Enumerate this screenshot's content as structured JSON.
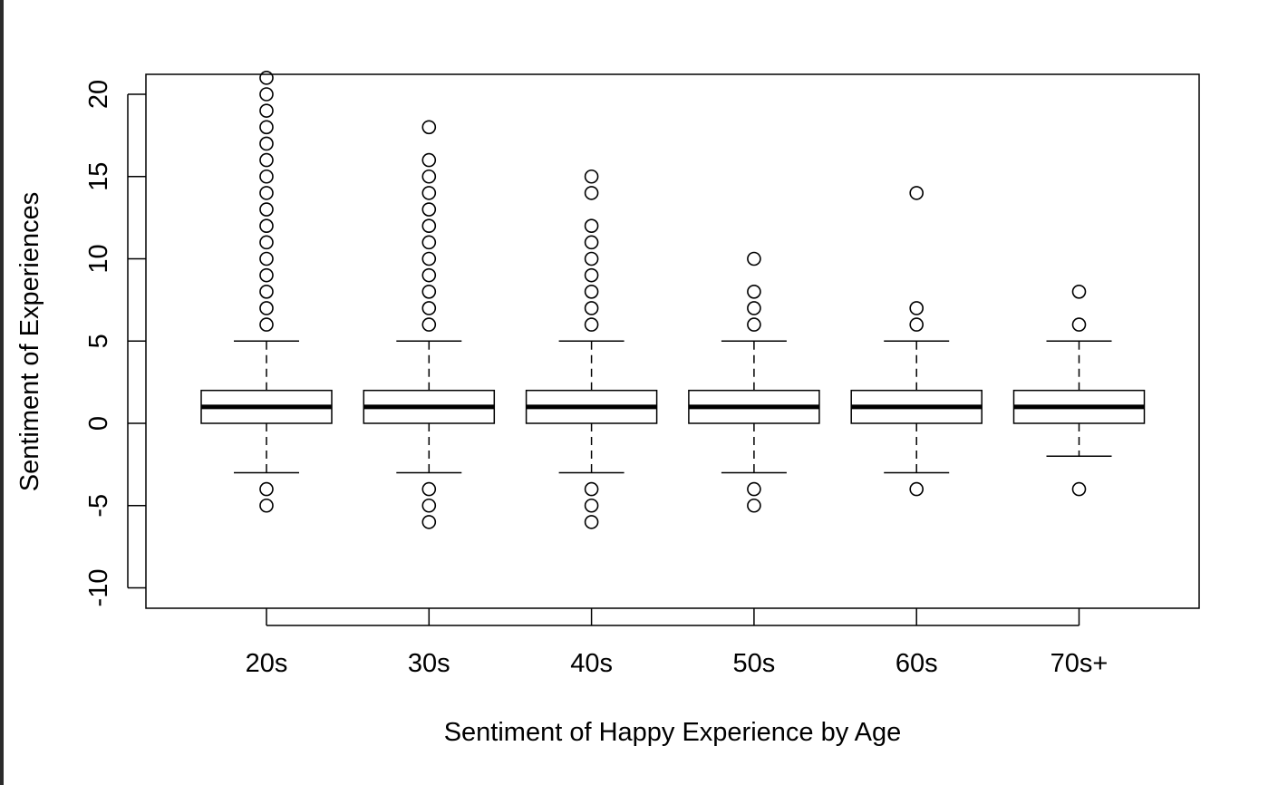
{
  "chart_data": {
    "type": "boxplot",
    "title": "",
    "xlabel": "Sentiment of Happy Experience by Age",
    "ylabel": "Sentiment of Experiences",
    "ylim": [
      -11.5,
      21
    ],
    "yticks": [
      -10,
      -5,
      0,
      5,
      10,
      15,
      20
    ],
    "ytick_labels": [
      "-10",
      "-5",
      "0",
      "5",
      "10",
      "15",
      "20"
    ],
    "grid": false,
    "legend": "none",
    "categories": [
      "20s",
      "30s",
      "40s",
      "50s",
      "60s",
      "70s+"
    ],
    "series": [
      {
        "category": "20s",
        "whisker_low": -3,
        "q1": 0,
        "median": 1,
        "q3": 2,
        "whisker_high": 5,
        "outliers": [
          -5,
          -4,
          6,
          7,
          8,
          9,
          10,
          11,
          12,
          13,
          14,
          15,
          16,
          17,
          18,
          19,
          20,
          21
        ]
      },
      {
        "category": "30s",
        "whisker_low": -3,
        "q1": 0,
        "median": 1,
        "q3": 2,
        "whisker_high": 5,
        "outliers": [
          -6,
          -5,
          -4,
          6,
          7,
          8,
          9,
          10,
          11,
          12,
          13,
          14,
          15,
          16,
          18
        ]
      },
      {
        "category": "40s",
        "whisker_low": -3,
        "q1": 0,
        "median": 1,
        "q3": 2,
        "whisker_high": 5,
        "outliers": [
          -6,
          -5,
          -4,
          6,
          7,
          8,
          9,
          10,
          11,
          12,
          14,
          15
        ]
      },
      {
        "category": "50s",
        "whisker_low": -3,
        "q1": 0,
        "median": 1,
        "q3": 2,
        "whisker_high": 5,
        "outliers": [
          -5,
          -4,
          6,
          7,
          8,
          10
        ]
      },
      {
        "category": "60s",
        "whisker_low": -3,
        "q1": 0,
        "median": 1,
        "q3": 2,
        "whisker_high": 5,
        "outliers": [
          -4,
          6,
          7,
          14
        ]
      },
      {
        "category": "70s+",
        "whisker_low": -2,
        "q1": 0,
        "median": 1,
        "q3": 2,
        "whisker_high": 5,
        "outliers": [
          -4,
          6,
          8
        ]
      }
    ]
  }
}
